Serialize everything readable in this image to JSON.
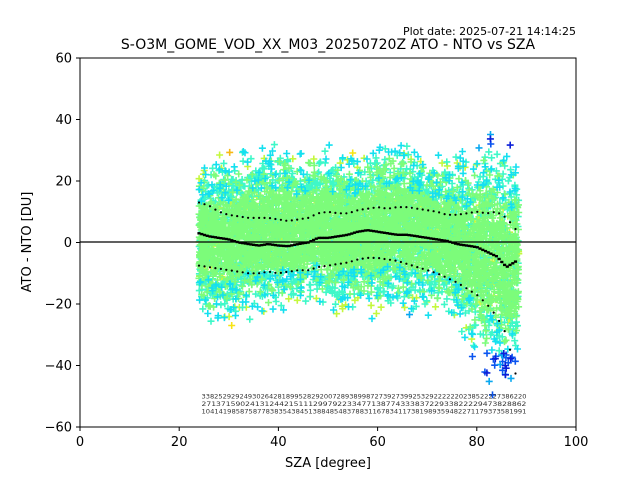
{
  "plot_date": "Plot date: 2025-07-21 14:14:25",
  "chart_data": {
    "type": "scatter",
    "title": "S-O3M_GOME_VOD_XX_M03_20250720Z ATO - NTO vs SZA",
    "xlabel": "SZA [degree]",
    "ylabel": "ATO - NTO [DU]",
    "xlim": [
      0,
      100
    ],
    "ylim": [
      -60,
      60
    ],
    "xticks": [
      "0",
      "20",
      "40",
      "60",
      "80",
      "100"
    ],
    "yticks": [
      "−60",
      "−40",
      "−20",
      "0",
      "20",
      "40",
      "60"
    ],
    "grid": false,
    "reference_line_y": 0,
    "colors": {
      "navy": "#0b1fd8",
      "blue": "#0a55f0",
      "azure": "#0aa8f0",
      "cyan": "#14e0f0",
      "aquamarine": "#3ef8c8",
      "lightgreen": "#7cfc7a",
      "yellowgreen": "#c4f83c",
      "yellow": "#f8e414",
      "orange": "#f8b814",
      "markers": "#000000"
    },
    "scatter_envelope": {
      "x": [
        24,
        26,
        28,
        30,
        32,
        34,
        36,
        38,
        40,
        42,
        44,
        46,
        48,
        50,
        52,
        54,
        56,
        58,
        60,
        62,
        64,
        66,
        68,
        70,
        72,
        74,
        76,
        78,
        80,
        82,
        84,
        86,
        88
      ],
      "upper": [
        29,
        32,
        34,
        32,
        33,
        34,
        36,
        38,
        36,
        35,
        33,
        35,
        36,
        37,
        33,
        32,
        33,
        34,
        36,
        37,
        38,
        36,
        35,
        33,
        32,
        33,
        33,
        31,
        37,
        46,
        44,
        40,
        34
      ],
      "lower": [
        -28,
        -31,
        -34,
        -30,
        -28,
        -29,
        -28,
        -30,
        -27,
        -26,
        -26,
        -25,
        -26,
        -27,
        -27,
        -26,
        -26,
        -26,
        -28,
        -27,
        -26,
        -27,
        -26,
        -27,
        -28,
        -30,
        -32,
        -36,
        -44,
        -52,
        -55,
        -58,
        -45
      ]
    },
    "series": [
      {
        "x": [
          24,
          26,
          28,
          30,
          32,
          34,
          36,
          38,
          40,
          42,
          44,
          46,
          48,
          50,
          52,
          54,
          56,
          58,
          60,
          62,
          64,
          66,
          68,
          70,
          72,
          74,
          76,
          78,
          80,
          82,
          84,
          86,
          88
        ],
        "y": [
          3,
          2,
          1.5,
          1,
          0,
          -0.5,
          -1,
          -0.5,
          -1,
          -1.2,
          -0.5,
          0,
          1.5,
          1.5,
          2,
          2.5,
          3.5,
          4,
          3.5,
          3,
          2.5,
          2.5,
          2,
          1.5,
          1,
          0.5,
          -0.5,
          -1,
          -1.5,
          -3,
          -4.5,
          -8,
          -6
        ]
      },
      {
        "x": [
          24,
          26,
          28,
          30,
          32,
          34,
          36,
          38,
          40,
          42,
          44,
          46,
          48,
          50,
          52,
          54,
          56,
          58,
          60,
          62,
          64,
          66,
          68,
          70,
          72,
          74,
          76,
          78,
          80,
          82,
          84,
          86,
          88
        ],
        "y": [
          13,
          12,
          10,
          9,
          8.5,
          8,
          8,
          8,
          7.5,
          7,
          7.5,
          8,
          9.5,
          10,
          9.5,
          9.5,
          10.5,
          11,
          11.5,
          11,
          11.5,
          11.5,
          11,
          10.5,
          10,
          9,
          9,
          9.5,
          10,
          9.5,
          10,
          8,
          4
        ]
      },
      {
        "x": [
          24,
          26,
          28,
          30,
          32,
          34,
          36,
          38,
          40,
          42,
          44,
          46,
          48,
          50,
          52,
          54,
          56,
          58,
          60,
          62,
          64,
          66,
          68,
          70,
          72,
          74,
          76,
          78,
          80,
          82,
          84,
          86,
          88
        ],
        "y": [
          -7.5,
          -8,
          -8.5,
          -9,
          -9.5,
          -10,
          -10,
          -9.5,
          -10,
          -9.5,
          -9,
          -9,
          -8,
          -7.5,
          -7,
          -6.5,
          -5.5,
          -5,
          -5,
          -5.5,
          -6,
          -7,
          -8,
          -9,
          -10,
          -11.5,
          -13,
          -15,
          -17,
          -20,
          -24,
          -30,
          -44
        ]
      }
    ],
    "count_labels": {
      "rows_y": [
        -50,
        -52.5,
        -55
      ],
      "row1": "33825292924930264281899528292007289389987273927399253292222220238522227386220",
      "row2": "2713715902413124421511129979223347713877433383722933822229473828862",
      "row3": "1041419858758778383543845138848548378831167834117381989359482271179373581991"
    }
  }
}
